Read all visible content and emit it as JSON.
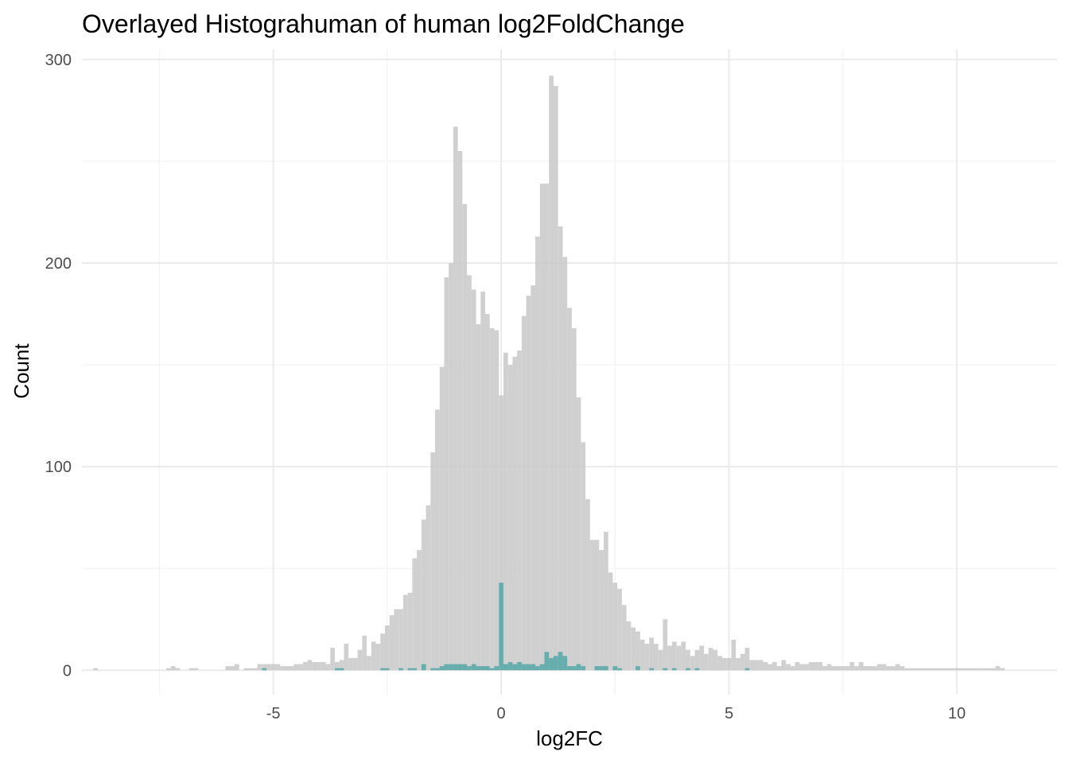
{
  "chart_data": {
    "type": "bar",
    "title": "Overlayed Histograhuman of human log2FoldChange",
    "xlabel": "log2FC",
    "ylabel": "Count",
    "xlim": [
      -9.2,
      12.2
    ],
    "ylim": [
      -12,
      305
    ],
    "x_ticks": [
      -5,
      0,
      5,
      10
    ],
    "x_tick_labels": [
      "-5",
      "0",
      "5",
      "10"
    ],
    "y_ticks": [
      0,
      100,
      200,
      300
    ],
    "y_tick_labels": [
      "0",
      "100",
      "200",
      "300"
    ],
    "grid": true,
    "legend": "none",
    "bin_width": 0.1,
    "series": [
      {
        "color": "#c8c8c8",
        "bins": [
          [
            -8.9,
            1
          ],
          [
            -7.3,
            1
          ],
          [
            -7.2,
            2
          ],
          [
            -7.1,
            1
          ],
          [
            -6.8,
            1
          ],
          [
            -6.7,
            1
          ],
          [
            -6.0,
            2
          ],
          [
            -5.9,
            2
          ],
          [
            -5.8,
            3
          ],
          [
            -5.6,
            1
          ],
          [
            -5.5,
            1
          ],
          [
            -5.4,
            1
          ],
          [
            -5.3,
            3
          ],
          [
            -5.2,
            3
          ],
          [
            -5.1,
            3
          ],
          [
            -5.0,
            3
          ],
          [
            -4.9,
            3
          ],
          [
            -4.8,
            2
          ],
          [
            -4.7,
            2
          ],
          [
            -4.6,
            2
          ],
          [
            -4.5,
            3
          ],
          [
            -4.4,
            3
          ],
          [
            -4.3,
            4
          ],
          [
            -4.2,
            5
          ],
          [
            -4.1,
            4
          ],
          [
            -4.0,
            4
          ],
          [
            -3.9,
            4
          ],
          [
            -3.8,
            3
          ],
          [
            -3.7,
            11
          ],
          [
            -3.6,
            4
          ],
          [
            -3.5,
            5
          ],
          [
            -3.4,
            13
          ],
          [
            -3.3,
            6
          ],
          [
            -3.2,
            6
          ],
          [
            -3.1,
            10
          ],
          [
            -3.0,
            17
          ],
          [
            -2.9,
            7
          ],
          [
            -2.8,
            14
          ],
          [
            -2.7,
            13
          ],
          [
            -2.6,
            18
          ],
          [
            -2.5,
            22
          ],
          [
            -2.4,
            27
          ],
          [
            -2.3,
            30
          ],
          [
            -2.2,
            30
          ],
          [
            -2.1,
            37
          ],
          [
            -2.0,
            38
          ],
          [
            -1.9,
            55
          ],
          [
            -1.8,
            59
          ],
          [
            -1.7,
            74
          ],
          [
            -1.6,
            81
          ],
          [
            -1.5,
            107
          ],
          [
            -1.4,
            128
          ],
          [
            -1.3,
            149
          ],
          [
            -1.2,
            193
          ],
          [
            -1.1,
            200
          ],
          [
            -1.0,
            267
          ],
          [
            -0.9,
            255
          ],
          [
            -0.8,
            229
          ],
          [
            -0.7,
            194
          ],
          [
            -0.6,
            187
          ],
          [
            -0.5,
            170
          ],
          [
            -0.4,
            186
          ],
          [
            -0.3,
            175
          ],
          [
            -0.2,
            168
          ],
          [
            -0.1,
            167
          ],
          [
            0.0,
            135
          ],
          [
            0.1,
            156
          ],
          [
            0.2,
            150
          ],
          [
            0.3,
            154
          ],
          [
            0.4,
            157
          ],
          [
            0.5,
            174
          ],
          [
            0.6,
            184
          ],
          [
            0.7,
            189
          ],
          [
            0.8,
            213
          ],
          [
            0.9,
            239
          ],
          [
            1.0,
            239
          ],
          [
            1.1,
            292
          ],
          [
            1.2,
            287
          ],
          [
            1.3,
            218
          ],
          [
            1.4,
            203
          ],
          [
            1.5,
            178
          ],
          [
            1.6,
            168
          ],
          [
            1.7,
            134
          ],
          [
            1.8,
            112
          ],
          [
            1.9,
            84
          ],
          [
            2.0,
            64
          ],
          [
            2.1,
            64
          ],
          [
            2.2,
            59
          ],
          [
            2.3,
            68
          ],
          [
            2.4,
            48
          ],
          [
            2.5,
            43
          ],
          [
            2.6,
            40
          ],
          [
            2.7,
            32
          ],
          [
            2.8,
            24
          ],
          [
            2.9,
            21
          ],
          [
            3.0,
            19
          ],
          [
            3.1,
            15
          ],
          [
            3.2,
            13
          ],
          [
            3.3,
            16
          ],
          [
            3.4,
            13
          ],
          [
            3.5,
            10
          ],
          [
            3.6,
            25
          ],
          [
            3.7,
            12
          ],
          [
            3.8,
            14
          ],
          [
            3.9,
            12
          ],
          [
            4.0,
            14
          ],
          [
            4.1,
            10
          ],
          [
            4.2,
            7
          ],
          [
            4.3,
            10
          ],
          [
            4.4,
            12
          ],
          [
            4.5,
            8
          ],
          [
            4.6,
            11
          ],
          [
            4.7,
            10
          ],
          [
            4.8,
            7
          ],
          [
            4.9,
            6
          ],
          [
            5.0,
            6
          ],
          [
            5.1,
            15
          ],
          [
            5.2,
            6
          ],
          [
            5.3,
            8
          ],
          [
            5.4,
            11
          ],
          [
            5.5,
            5
          ],
          [
            5.6,
            5
          ],
          [
            5.7,
            5
          ],
          [
            5.8,
            4
          ],
          [
            5.9,
            3
          ],
          [
            6.0,
            4
          ],
          [
            6.1,
            2
          ],
          [
            6.2,
            5
          ],
          [
            6.3,
            3
          ],
          [
            6.4,
            2
          ],
          [
            6.5,
            4
          ],
          [
            6.6,
            3
          ],
          [
            6.7,
            3
          ],
          [
            6.8,
            4
          ],
          [
            6.9,
            4
          ],
          [
            7.0,
            4
          ],
          [
            7.1,
            2
          ],
          [
            7.2,
            3
          ],
          [
            7.3,
            2
          ],
          [
            7.4,
            2
          ],
          [
            7.5,
            2
          ],
          [
            7.6,
            2
          ],
          [
            7.7,
            4
          ],
          [
            7.8,
            2
          ],
          [
            7.9,
            4
          ],
          [
            8.0,
            2
          ],
          [
            8.1,
            2
          ],
          [
            8.2,
            2
          ],
          [
            8.3,
            3
          ],
          [
            8.4,
            3
          ],
          [
            8.5,
            2
          ],
          [
            8.6,
            2
          ],
          [
            8.7,
            3
          ],
          [
            8.8,
            2
          ],
          [
            8.9,
            1
          ],
          [
            9.0,
            1
          ],
          [
            9.1,
            1
          ],
          [
            9.2,
            1
          ],
          [
            9.3,
            1
          ],
          [
            9.4,
            1
          ],
          [
            9.5,
            1
          ],
          [
            9.6,
            1
          ],
          [
            9.7,
            1
          ],
          [
            9.8,
            1
          ],
          [
            9.9,
            1
          ],
          [
            10.0,
            1
          ],
          [
            10.1,
            1
          ],
          [
            10.2,
            1
          ],
          [
            10.3,
            1
          ],
          [
            10.4,
            1
          ],
          [
            10.5,
            1
          ],
          [
            10.6,
            1
          ],
          [
            10.7,
            1
          ],
          [
            10.8,
            1
          ],
          [
            10.9,
            2
          ],
          [
            11.0,
            1
          ]
        ]
      },
      {
        "color": "#5aa9a9",
        "bins": [
          [
            -5.2,
            1
          ],
          [
            -3.6,
            1
          ],
          [
            -3.5,
            1
          ],
          [
            -2.6,
            1
          ],
          [
            -2.5,
            1
          ],
          [
            -2.2,
            1
          ],
          [
            -2.0,
            1
          ],
          [
            -1.9,
            1
          ],
          [
            -1.7,
            3
          ],
          [
            -1.5,
            1
          ],
          [
            -1.4,
            1
          ],
          [
            -1.3,
            2
          ],
          [
            -1.2,
            3
          ],
          [
            -1.1,
            3
          ],
          [
            -1.0,
            3
          ],
          [
            -0.9,
            3
          ],
          [
            -0.8,
            3
          ],
          [
            -0.7,
            2
          ],
          [
            -0.6,
            3
          ],
          [
            -0.5,
            2
          ],
          [
            -0.4,
            2
          ],
          [
            -0.3,
            2
          ],
          [
            -0.2,
            1
          ],
          [
            -0.1,
            2
          ],
          [
            0.0,
            43
          ],
          [
            0.1,
            3
          ],
          [
            0.2,
            4
          ],
          [
            0.3,
            3
          ],
          [
            0.4,
            4
          ],
          [
            0.5,
            3
          ],
          [
            0.6,
            3
          ],
          [
            0.7,
            3
          ],
          [
            0.8,
            2
          ],
          [
            0.9,
            3
          ],
          [
            1.0,
            9
          ],
          [
            1.1,
            6
          ],
          [
            1.2,
            7
          ],
          [
            1.3,
            9
          ],
          [
            1.4,
            7
          ],
          [
            1.5,
            2
          ],
          [
            1.6,
            2
          ],
          [
            1.7,
            3
          ],
          [
            1.8,
            2
          ],
          [
            2.1,
            2
          ],
          [
            2.2,
            2
          ],
          [
            2.3,
            2
          ],
          [
            2.5,
            2
          ],
          [
            2.6,
            1
          ],
          [
            3.0,
            2
          ],
          [
            3.3,
            1
          ],
          [
            3.6,
            1
          ],
          [
            3.8,
            1
          ],
          [
            4.1,
            1
          ],
          [
            4.3,
            1
          ],
          [
            5.4,
            1
          ]
        ]
      }
    ]
  }
}
